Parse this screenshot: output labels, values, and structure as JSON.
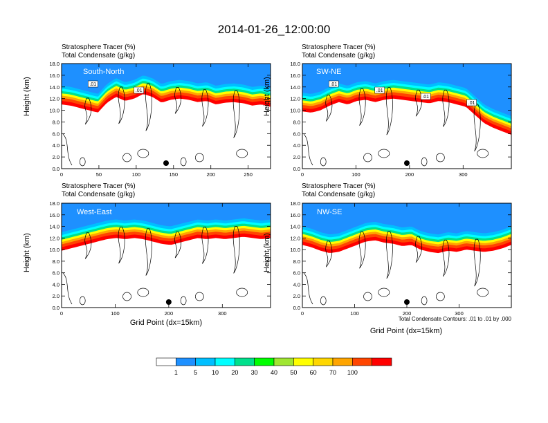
{
  "figure": {
    "title": "2014-01-26_12:00:00",
    "footnote": "Total Condensate Contours: .01 to .01 by .000"
  },
  "colorbar": {
    "labels": [
      "1",
      "5",
      "10",
      "20",
      "30",
      "40",
      "50",
      "60",
      "70",
      "100"
    ],
    "colors": [
      "#ffffff",
      "#1e90ff",
      "#00bfff",
      "#00ffff",
      "#00e08c",
      "#00ff00",
      "#a0e632",
      "#ffff00",
      "#ffd700",
      "#ffa500",
      "#ff4500",
      "#ff0000"
    ]
  },
  "chart_data": [
    {
      "type": "heatmap",
      "panel": "South-North",
      "title_lines": [
        "Stratosphere Tracer   (%)",
        "Total Condensate   (g/kg)"
      ],
      "xlabel": "",
      "ylabel": "Height (km)",
      "xlim": [
        0,
        280
      ],
      "ylim": [
        0,
        18
      ],
      "xticks": [
        "0",
        "50",
        "100",
        "150",
        "200",
        "250"
      ],
      "yticks": [
        "0.0",
        "2.0",
        "4.0",
        "6.0",
        "8.0",
        "10.0",
        "12.0",
        "14.0",
        "16.0",
        "18.0"
      ],
      "contour_labels": [
        ".01",
        ".01"
      ],
      "tracer_top_km": [
        14.2,
        14.0,
        13.6,
        13.2,
        12.8,
        14.5,
        15.5,
        14.8,
        15.2,
        16.0,
        15.5,
        14.5,
        15.0,
        15.2,
        15.0,
        14.6,
        14.8,
        14.2,
        14.5,
        14.6,
        14.4,
        14.0,
        14.2,
        13.8
      ],
      "marker_x": 140
    },
    {
      "type": "heatmap",
      "panel": "SW-NE",
      "title_lines": [
        "Stratosphere Tracer   (%)",
        "Total Condensate   (g/kg)"
      ],
      "xlabel": "",
      "ylabel": "Height (km)",
      "xlim": [
        0,
        390
      ],
      "ylim": [
        0,
        18
      ],
      "xticks": [
        "0",
        "100",
        "200",
        "300"
      ],
      "yticks": [
        "0.0",
        "2.0",
        "4.0",
        "6.0",
        "8.0",
        "10.0",
        "12.0",
        "14.0",
        "16.0",
        "18.0"
      ],
      "contour_labels": [
        ".01",
        ".01",
        ".01",
        ".01"
      ],
      "tracer_top_km": [
        13.0,
        12.8,
        13.2,
        14.0,
        14.6,
        14.2,
        14.8,
        15.0,
        14.6,
        15.0,
        15.2,
        15.0,
        14.8,
        14.6,
        14.4,
        14.8,
        14.6,
        14.2,
        13.8,
        12.4,
        11.0,
        10.2,
        9.6,
        9.0
      ],
      "marker_x": 195
    },
    {
      "type": "heatmap",
      "panel": "West-East",
      "title_lines": [
        "Stratosphere Tracer   (%)",
        "Total Condensate   (g/kg)"
      ],
      "xlabel": "Grid Point (dx=15km)",
      "ylabel": "Height (km)",
      "xlim": [
        0,
        390
      ],
      "ylim": [
        0,
        18
      ],
      "xticks": [
        "0",
        "100",
        "200",
        "300"
      ],
      "yticks": [
        "0.0",
        "2.0",
        "4.0",
        "6.0",
        "8.0",
        "10.0",
        "12.0",
        "14.0",
        "16.0",
        "18.0"
      ],
      "contour_labels": [],
      "tracer_top_km": [
        13.0,
        13.4,
        13.8,
        14.2,
        14.6,
        15.0,
        15.2,
        15.0,
        15.2,
        15.0,
        14.6,
        14.2,
        14.0,
        14.4,
        14.8,
        15.2,
        15.0,
        15.2,
        15.0,
        15.2,
        15.4,
        15.2,
        15.0,
        15.2
      ],
      "marker_x": 200
    },
    {
      "type": "heatmap",
      "panel": "NW-SE",
      "title_lines": [
        "Stratosphere Tracer   (%)",
        "Total Condensate   (g/kg)"
      ],
      "xlabel": "Grid Point (dx=15km)",
      "ylabel": "Height (km)",
      "xlim": [
        0,
        400
      ],
      "ylim": [
        0,
        18
      ],
      "xticks": [
        "0",
        "100",
        "200",
        "300"
      ],
      "yticks": [
        "0.0",
        "2.0",
        "4.0",
        "6.0",
        "8.0",
        "10.0",
        "12.0",
        "14.0",
        "16.0",
        "18.0"
      ],
      "contour_labels": [],
      "tracer_top_km": [
        14.0,
        13.6,
        13.0,
        12.6,
        12.8,
        13.4,
        14.0,
        14.6,
        14.8,
        14.4,
        14.2,
        13.8,
        14.0,
        13.2,
        12.8,
        12.6,
        13.0,
        12.8,
        13.2,
        13.0,
        12.8,
        13.0,
        13.4,
        14.0
      ],
      "marker_x": 200
    }
  ]
}
